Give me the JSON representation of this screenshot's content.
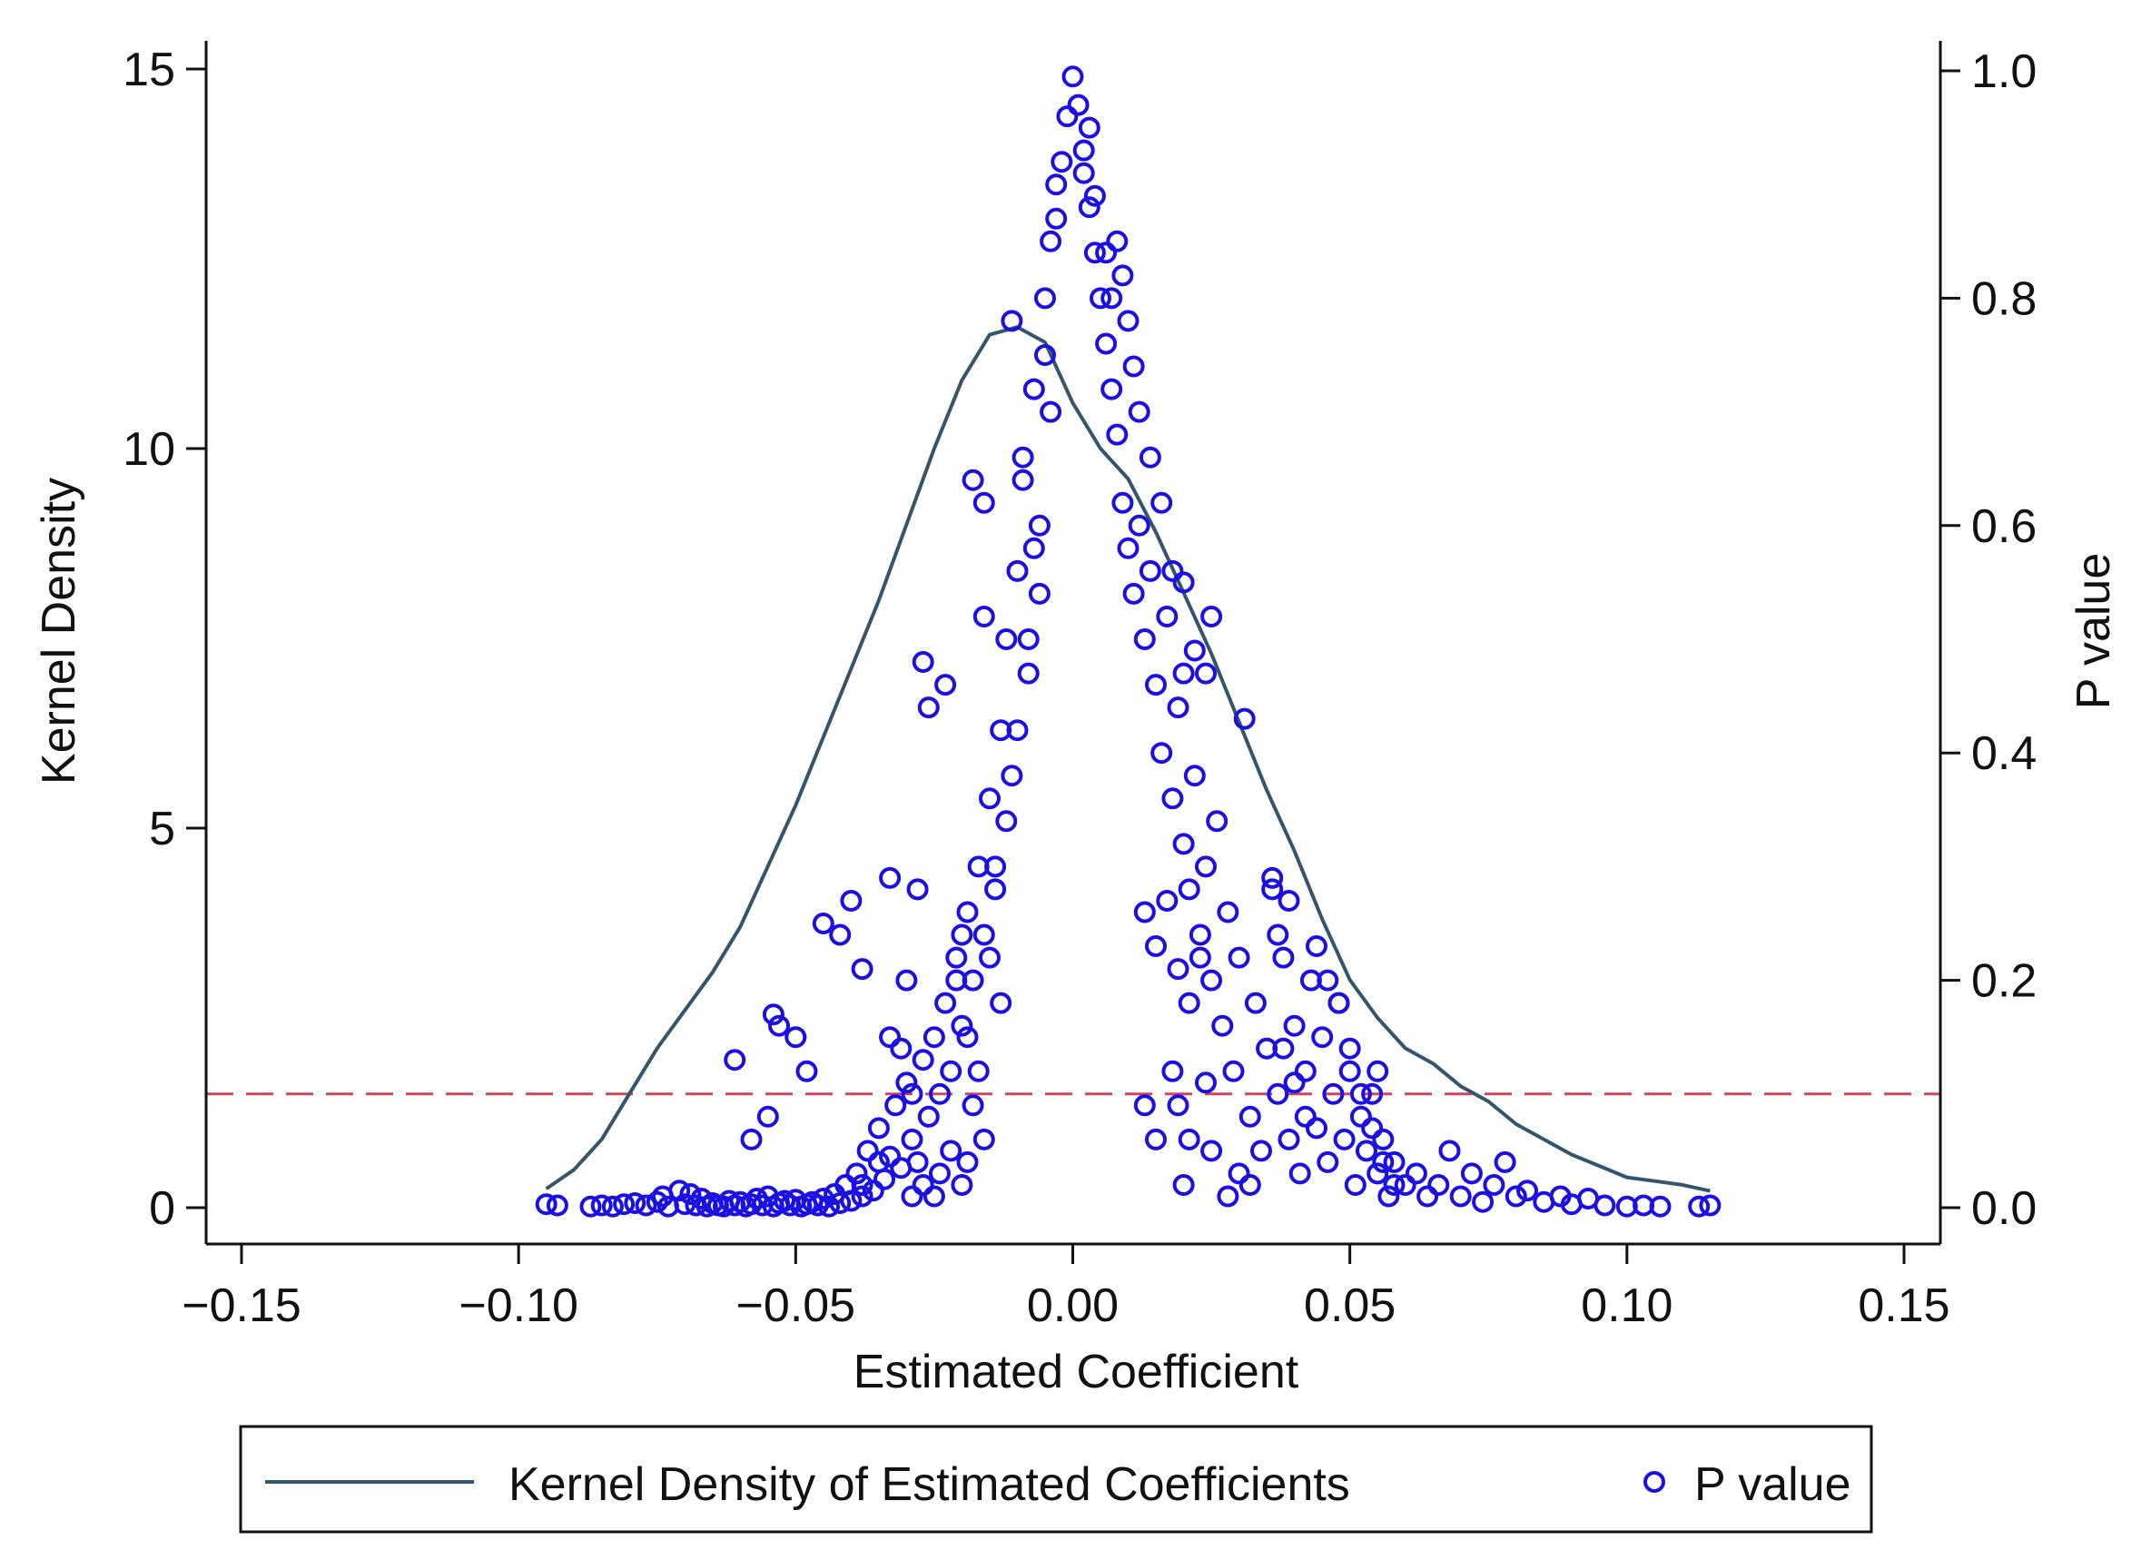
{
  "chart_data": {
    "type": "scatter",
    "title": "",
    "xlabel": "Estimated Coefficient",
    "ylabel_left": "Kernel Density",
    "ylabel_right": "P value",
    "xlim": [
      -0.15,
      0.15
    ],
    "ylim_left": [
      0,
      15
    ],
    "ylim_right": [
      0,
      1
    ],
    "x_ticks": [
      -0.15,
      -0.1,
      -0.05,
      0.0,
      0.05,
      0.1,
      0.15
    ],
    "x_tick_labels": [
      "−0.15",
      "−0.10",
      "−0.05",
      "0.00",
      "0.05",
      "0.10",
      "0.15"
    ],
    "y_left_ticks": [
      0,
      5,
      10,
      15
    ],
    "y_left_tick_labels": [
      "0",
      "5",
      "10",
      "15"
    ],
    "y_right_ticks": [
      0,
      0.2,
      0.4,
      0.6,
      0.8,
      1.0
    ],
    "y_right_tick_labels": [
      "0.0",
      "0.2",
      "0.4",
      "0.6",
      "0.8",
      "1.0"
    ],
    "reference_line": {
      "axis": "right",
      "value": 0.1,
      "style": "dashed",
      "color": "#d0455e"
    },
    "legend_position": "bottom",
    "series": [
      {
        "name": "Kernel Density of Estimated Coefficients",
        "type": "line",
        "axis": "left",
        "color": "#33566e",
        "x": [
          -0.095,
          -0.09,
          -0.085,
          -0.08,
          -0.075,
          -0.07,
          -0.065,
          -0.06,
          -0.055,
          -0.05,
          -0.045,
          -0.04,
          -0.035,
          -0.03,
          -0.025,
          -0.02,
          -0.015,
          -0.01,
          -0.005,
          0.0,
          0.005,
          0.01,
          0.015,
          0.02,
          0.025,
          0.03,
          0.035,
          0.04,
          0.045,
          0.05,
          0.055,
          0.06,
          0.065,
          0.07,
          0.075,
          0.08,
          0.085,
          0.09,
          0.095,
          0.1,
          0.105,
          0.11,
          0.115
        ],
        "y": [
          0.25,
          0.5,
          0.9,
          1.5,
          2.1,
          2.6,
          3.1,
          3.7,
          4.5,
          5.3,
          6.2,
          7.1,
          8.0,
          9.0,
          10.0,
          10.9,
          11.5,
          11.6,
          11.4,
          10.6,
          10.0,
          9.6,
          8.9,
          8.1,
          7.3,
          6.4,
          5.5,
          4.7,
          3.8,
          3.0,
          2.5,
          2.1,
          1.9,
          1.6,
          1.4,
          1.1,
          0.9,
          0.7,
          0.55,
          0.4,
          0.35,
          0.3,
          0.22
        ]
      },
      {
        "name": "P value",
        "type": "scatter",
        "axis": "right",
        "marker": "hollow-circle",
        "color": "#1a10e6",
        "points": [
          [
            -0.095,
            0.003
          ],
          [
            -0.093,
            0.002
          ],
          [
            -0.087,
            0.001
          ],
          [
            -0.085,
            0.002
          ],
          [
            -0.083,
            0.001
          ],
          [
            -0.081,
            0.003
          ],
          [
            -0.079,
            0.004
          ],
          [
            -0.077,
            0.002
          ],
          [
            -0.075,
            0.005
          ],
          [
            -0.074,
            0.01
          ],
          [
            -0.073,
            0.001
          ],
          [
            -0.071,
            0.015
          ],
          [
            -0.07,
            0.003
          ],
          [
            -0.069,
            0.012
          ],
          [
            -0.068,
            0.002
          ],
          [
            -0.067,
            0.008
          ],
          [
            -0.066,
            0.001
          ],
          [
            -0.065,
            0.004
          ],
          [
            -0.064,
            0.002
          ],
          [
            -0.063,
            0.001
          ],
          [
            -0.062,
            0.006
          ],
          [
            -0.061,
            0.002
          ],
          [
            -0.06,
            0.005
          ],
          [
            -0.059,
            0.001
          ],
          [
            -0.058,
            0.003
          ],
          [
            -0.057,
            0.008
          ],
          [
            -0.056,
            0.002
          ],
          [
            -0.055,
            0.01
          ],
          [
            -0.054,
            0.001
          ],
          [
            -0.053,
            0.004
          ],
          [
            -0.052,
            0.006
          ],
          [
            -0.051,
            0.002
          ],
          [
            -0.05,
            0.007
          ],
          [
            -0.049,
            0.001
          ],
          [
            -0.048,
            0.003
          ],
          [
            -0.047,
            0.005
          ],
          [
            -0.046,
            0.002
          ],
          [
            -0.045,
            0.008
          ],
          [
            -0.044,
            0.001
          ],
          [
            -0.043,
            0.012
          ],
          [
            -0.042,
            0.004
          ],
          [
            -0.041,
            0.02
          ],
          [
            -0.04,
            0.006
          ],
          [
            -0.039,
            0.03
          ],
          [
            -0.038,
            0.01
          ],
          [
            -0.037,
            0.05
          ],
          [
            -0.036,
            0.015
          ],
          [
            -0.035,
            0.07
          ],
          [
            -0.034,
            0.025
          ],
          [
            -0.033,
            0.045
          ],
          [
            -0.032,
            0.09
          ],
          [
            -0.031,
            0.035
          ],
          [
            -0.03,
            0.11
          ],
          [
            -0.029,
            0.06
          ],
          [
            -0.028,
            0.04
          ],
          [
            -0.027,
            0.13
          ],
          [
            -0.026,
            0.08
          ],
          [
            -0.025,
            0.15
          ],
          [
            -0.024,
            0.1
          ],
          [
            -0.023,
            0.18
          ],
          [
            -0.022,
            0.12
          ],
          [
            -0.021,
            0.22
          ],
          [
            -0.02,
            0.16
          ],
          [
            -0.019,
            0.26
          ],
          [
            -0.018,
            0.2
          ],
          [
            -0.017,
            0.3
          ],
          [
            -0.016,
            0.24
          ],
          [
            -0.015,
            0.36
          ],
          [
            -0.014,
            0.28
          ],
          [
            -0.013,
            0.42
          ],
          [
            -0.012,
            0.5
          ],
          [
            -0.011,
            0.38
          ],
          [
            -0.01,
            0.56
          ],
          [
            -0.009,
            0.64
          ],
          [
            -0.008,
            0.47
          ],
          [
            -0.007,
            0.72
          ],
          [
            -0.006,
            0.6
          ],
          [
            -0.005,
            0.8
          ],
          [
            -0.004,
            0.7
          ],
          [
            -0.003,
            0.87
          ],
          [
            -0.002,
            0.92
          ],
          [
            -0.001,
            0.96
          ],
          [
            0.0,
            0.995
          ],
          [
            0.001,
            0.97
          ],
          [
            0.002,
            0.93
          ],
          [
            0.003,
            0.88
          ],
          [
            0.004,
            0.84
          ],
          [
            0.005,
            0.8
          ],
          [
            0.006,
            0.76
          ],
          [
            0.007,
            0.72
          ],
          [
            0.008,
            0.68
          ],
          [
            0.009,
            0.62
          ],
          [
            0.01,
            0.58
          ],
          [
            0.011,
            0.54
          ],
          [
            0.012,
            0.6
          ],
          [
            0.013,
            0.5
          ],
          [
            0.014,
            0.56
          ],
          [
            0.015,
            0.46
          ],
          [
            0.016,
            0.4
          ],
          [
            0.017,
            0.52
          ],
          [
            0.018,
            0.36
          ],
          [
            0.019,
            0.44
          ],
          [
            0.02,
            0.32
          ],
          [
            0.021,
            0.28
          ],
          [
            0.022,
            0.38
          ],
          [
            0.023,
            0.24
          ],
          [
            0.024,
            0.3
          ],
          [
            0.025,
            0.2
          ],
          [
            0.026,
            0.34
          ],
          [
            0.027,
            0.16
          ],
          [
            0.028,
            0.26
          ],
          [
            0.029,
            0.12
          ],
          [
            0.03,
            0.22
          ],
          [
            0.031,
            0.43
          ],
          [
            0.032,
            0.08
          ],
          [
            0.033,
            0.18
          ],
          [
            0.034,
            0.05
          ],
          [
            0.035,
            0.14
          ],
          [
            0.036,
            0.28
          ],
          [
            0.037,
            0.1
          ],
          [
            0.038,
            0.22
          ],
          [
            0.039,
            0.06
          ],
          [
            0.04,
            0.16
          ],
          [
            0.041,
            0.03
          ],
          [
            0.042,
            0.12
          ],
          [
            0.043,
            0.2
          ],
          [
            0.044,
            0.07
          ],
          [
            0.045,
            0.15
          ],
          [
            0.046,
            0.04
          ],
          [
            0.047,
            0.1
          ],
          [
            0.048,
            0.18
          ],
          [
            0.049,
            0.06
          ],
          [
            0.05,
            0.12
          ],
          [
            0.051,
            0.02
          ],
          [
            0.052,
            0.08
          ],
          [
            0.053,
            0.05
          ],
          [
            0.054,
            0.1
          ],
          [
            0.055,
            0.03
          ],
          [
            0.056,
            0.06
          ],
          [
            0.057,
            0.01
          ],
          [
            0.058,
            0.04
          ],
          [
            0.06,
            0.02
          ],
          [
            0.062,
            0.03
          ],
          [
            0.064,
            0.01
          ],
          [
            0.066,
            0.02
          ],
          [
            0.068,
            0.05
          ],
          [
            0.07,
            0.01
          ],
          [
            0.072,
            0.03
          ],
          [
            0.074,
            0.005
          ],
          [
            0.076,
            0.02
          ],
          [
            0.078,
            0.04
          ],
          [
            0.08,
            0.01
          ],
          [
            0.082,
            0.015
          ],
          [
            0.085,
            0.005
          ],
          [
            0.088,
            0.01
          ],
          [
            0.09,
            0.003
          ],
          [
            0.093,
            0.008
          ],
          [
            0.096,
            0.002
          ],
          [
            0.1,
            0.001
          ],
          [
            0.103,
            0.002
          ],
          [
            0.106,
            0.001
          ],
          [
            0.113,
            0.001
          ],
          [
            0.115,
            0.002
          ],
          [
            -0.045,
            0.25
          ],
          [
            -0.042,
            0.24
          ],
          [
            -0.04,
            0.27
          ],
          [
            -0.038,
            0.21
          ],
          [
            -0.054,
            0.17
          ],
          [
            -0.053,
            0.16
          ],
          [
            -0.05,
            0.15
          ],
          [
            -0.048,
            0.12
          ],
          [
            -0.061,
            0.13
          ],
          [
            -0.058,
            0.06
          ],
          [
            -0.055,
            0.08
          ],
          [
            -0.033,
            0.29
          ],
          [
            -0.028,
            0.28
          ],
          [
            -0.026,
            0.44
          ],
          [
            -0.027,
            0.48
          ],
          [
            -0.023,
            0.46
          ],
          [
            -0.016,
            0.52
          ],
          [
            -0.018,
            0.64
          ],
          [
            -0.016,
            0.62
          ],
          [
            -0.009,
            0.66
          ],
          [
            -0.011,
            0.78
          ],
          [
            -0.021,
            0.2
          ],
          [
            -0.02,
            0.24
          ],
          [
            -0.019,
            0.15
          ],
          [
            -0.03,
            0.2
          ],
          [
            -0.029,
            0.1
          ],
          [
            -0.031,
            0.14
          ],
          [
            -0.033,
            0.15
          ],
          [
            -0.035,
            0.04
          ],
          [
            -0.038,
            0.02
          ],
          [
            0.008,
            0.85
          ],
          [
            0.009,
            0.82
          ],
          [
            0.01,
            0.78
          ],
          [
            0.011,
            0.74
          ],
          [
            0.012,
            0.7
          ],
          [
            0.014,
            0.66
          ],
          [
            0.016,
            0.62
          ],
          [
            0.018,
            0.56
          ],
          [
            0.02,
            0.55
          ],
          [
            0.022,
            0.49
          ],
          [
            0.024,
            0.47
          ],
          [
            0.02,
            0.47
          ],
          [
            0.025,
            0.52
          ],
          [
            0.013,
            0.26
          ],
          [
            0.015,
            0.23
          ],
          [
            0.017,
            0.27
          ],
          [
            0.019,
            0.21
          ],
          [
            0.021,
            0.18
          ],
          [
            0.023,
            0.22
          ],
          [
            0.018,
            0.12
          ],
          [
            0.019,
            0.09
          ],
          [
            0.021,
            0.06
          ],
          [
            0.02,
            0.02
          ],
          [
            0.024,
            0.11
          ],
          [
            0.025,
            0.05
          ],
          [
            0.028,
            0.01
          ],
          [
            0.03,
            0.03
          ],
          [
            0.032,
            0.02
          ],
          [
            0.036,
            0.29
          ],
          [
            0.037,
            0.24
          ],
          [
            0.039,
            0.27
          ],
          [
            0.038,
            0.14
          ],
          [
            0.04,
            0.11
          ],
          [
            0.042,
            0.08
          ],
          [
            0.044,
            0.23
          ],
          [
            0.046,
            0.2
          ],
          [
            0.048,
            0.18
          ],
          [
            0.05,
            0.14
          ],
          [
            0.052,
            0.1
          ],
          [
            0.054,
            0.07
          ],
          [
            0.056,
            0.04
          ],
          [
            0.058,
            0.02
          ],
          [
            0.055,
            0.12
          ],
          [
            0.013,
            0.09
          ],
          [
            0.015,
            0.06
          ],
          [
            -0.005,
            0.75
          ],
          [
            -0.004,
            0.85
          ],
          [
            -0.003,
            0.9
          ],
          [
            0.003,
            0.95
          ],
          [
            0.002,
            0.91
          ],
          [
            0.004,
            0.89
          ],
          [
            0.006,
            0.84
          ],
          [
            0.007,
            0.8
          ],
          [
            -0.007,
            0.58
          ],
          [
            -0.006,
            0.54
          ],
          [
            -0.008,
            0.5
          ],
          [
            -0.01,
            0.42
          ],
          [
            -0.012,
            0.34
          ],
          [
            -0.014,
            0.3
          ],
          [
            -0.015,
            0.22
          ],
          [
            -0.013,
            0.18
          ],
          [
            -0.017,
            0.12
          ],
          [
            -0.018,
            0.09
          ],
          [
            -0.016,
            0.06
          ],
          [
            -0.019,
            0.04
          ],
          [
            -0.02,
            0.02
          ],
          [
            -0.022,
            0.05
          ],
          [
            -0.024,
            0.03
          ],
          [
            -0.025,
            0.01
          ],
          [
            -0.027,
            0.02
          ],
          [
            -0.029,
            0.01
          ]
        ]
      }
    ]
  },
  "legend": {
    "line_label": "Kernel Density of Estimated Coefficients",
    "marker_label": "P value"
  }
}
